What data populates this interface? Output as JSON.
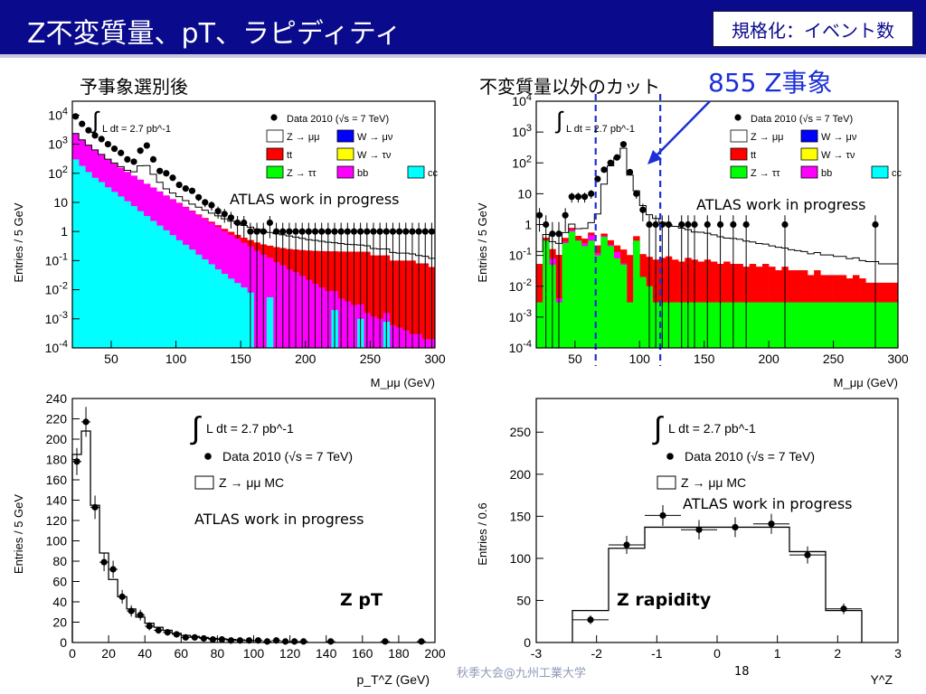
{
  "header": {
    "title": "Z不変質量、pT、ラピディティ",
    "badge": "規格化：イベント数"
  },
  "sections": {
    "left": "予事象選別後",
    "right": "不変質量以外のカット",
    "count": "855 Z事象"
  },
  "footer": {
    "conference": "秋季大会@九州工業大学",
    "page": "18"
  },
  "colors": {
    "title_bg": "#0a0a8c",
    "zmumu": "#ffffff",
    "wmunu": "#0000ff",
    "ttbar": "#ff0000",
    "wtaunu": "#ffff00",
    "ztautau": "#00ff00",
    "bb": "#ff00ff",
    "cc": "#00ffff",
    "annotation": "#1b2fd8"
  },
  "chart_data": [
    {
      "id": "mass-preselection",
      "type": "bar",
      "log_y": true,
      "x_unit_label": "M_μμ (GeV)",
      "ylabel": "Entries / 5 GeV",
      "xlim": [
        20,
        300
      ],
      "ylim": [
        0.0001,
        30000
      ],
      "x_ticks": [
        "50",
        "100",
        "150",
        "200",
        "250",
        "300"
      ],
      "y_ticks": [
        "10^-4",
        "10^-3",
        "10^-2",
        "10^-1",
        "1",
        "10",
        "10^2",
        "10^3",
        "10^4"
      ],
      "annotation": "ATLAS work in progress",
      "lumi": "L dt = 2.7 pb^-1",
      "legend": [
        "Data 2010 (√s = 7 TeV)",
        "Z → μμ",
        "W → μν",
        "tt",
        "W → τν",
        "Z → ττ",
        "bb",
        "cc"
      ],
      "x_bins_start": 20,
      "bin_width": 5,
      "series": [
        {
          "name": "cc",
          "values": [
            300,
            180,
            110,
            70,
            50,
            33,
            23,
            16,
            11,
            7.5,
            5,
            3.4,
            2.3,
            1.6,
            1.1,
            0.75,
            0.5,
            0.35,
            0.24,
            0.16,
            0.11,
            0.075,
            0.05,
            0.035,
            0.024,
            0.017,
            0.012,
            0.008,
            0,
            0,
            0.0055,
            0,
            0,
            0,
            0,
            0,
            0,
            0,
            0,
            0,
            0.002,
            0,
            0,
            0,
            0.001,
            0,
            0,
            0,
            0.0008,
            0,
            0,
            0,
            0,
            0,
            0,
            0
          ]
        },
        {
          "name": "bb",
          "values": [
            2000,
            1200,
            800,
            550,
            380,
            260,
            190,
            140,
            100,
            75,
            55,
            40,
            30,
            22,
            16,
            12,
            9,
            6.5,
            4.8,
            3.5,
            2.6,
            1.9,
            1.4,
            1.0,
            0.75,
            0.55,
            0.4,
            0.3,
            0.22,
            0.16,
            0.12,
            0.09,
            0.07,
            0.05,
            0.04,
            0.03,
            0.022,
            0.016,
            0.012,
            0.009,
            0.007,
            0.005,
            0.004,
            0.003,
            0.0022,
            0.0016,
            0.0012,
            0.001,
            0.0008,
            0.0006,
            0.0005,
            0.0004,
            0.0003,
            0.0003,
            0.0002,
            0.0002
          ]
        },
        {
          "name": "tt",
          "values": [
            0.2,
            0.2,
            0.2,
            0.2,
            0.2,
            0.2,
            0.2,
            0.2,
            0.2,
            0.2,
            0.2,
            0.2,
            0.2,
            0.2,
            0.2,
            0.2,
            0.2,
            0.2,
            0.2,
            0.2,
            0.2,
            0.2,
            0.2,
            0.2,
            0.2,
            0.2,
            0.2,
            0.2,
            0.2,
            0.2,
            0.2,
            0.2,
            0.2,
            0.2,
            0.2,
            0.2,
            0.2,
            0.2,
            0.2,
            0.2,
            0.2,
            0.2,
            0.2,
            0.2,
            0.2,
            0.2,
            0.15,
            0.15,
            0.15,
            0.1,
            0.1,
            0.1,
            0.1,
            0.08,
            0.08,
            0.06
          ]
        },
        {
          "name": "Z → μμ",
          "values": [
            30,
            25,
            20,
            18,
            15,
            14,
            13,
            13,
            15,
            30,
            120,
            140,
            60,
            25,
            12,
            8,
            6,
            4.5,
            3.5,
            3,
            2.5,
            2.1,
            1.8,
            1.5,
            1.3,
            1.1,
            1,
            0.9,
            0.8,
            0.7,
            0.6,
            0.55,
            0.5,
            0.45,
            0.4,
            0.35,
            0.3,
            0.28,
            0.25,
            0.22,
            0.2,
            0.18,
            0.16,
            0.15,
            0.14,
            0.12,
            0.11,
            0.1,
            0.1,
            0.09,
            0.08,
            0.08,
            0.07,
            0.07,
            0.06,
            0.06
          ]
        },
        {
          "name": "Data 2010 (√s = 7 TeV)",
          "values": [
            9000,
            5000,
            3000,
            2000,
            1500,
            1000,
            700,
            500,
            300,
            250,
            600,
            900,
            300,
            120,
            100,
            70,
            40,
            30,
            25,
            15,
            10,
            8,
            5,
            4,
            3,
            2,
            2,
            1,
            1,
            1,
            2,
            1,
            1,
            1,
            1,
            1,
            1,
            1,
            1,
            1,
            1,
            1,
            1,
            1,
            1,
            1,
            1,
            1,
            1,
            1,
            1,
            1,
            1,
            1,
            1,
            1
          ]
        }
      ]
    },
    {
      "id": "mass-after-cuts",
      "type": "bar",
      "log_y": true,
      "x_unit_label": "M_μμ (GeV)",
      "ylabel": "Entries / 5 GeV",
      "xlim": [
        20,
        300
      ],
      "ylim": [
        0.0001,
        10000
      ],
      "x_ticks": [
        "50",
        "100",
        "150",
        "200",
        "250",
        "300"
      ],
      "y_ticks": [
        "10^-4",
        "10^-3",
        "10^-2",
        "10^-1",
        "1",
        "10",
        "10^2",
        "10^3",
        "10^4"
      ],
      "annotation": "ATLAS work in progress",
      "lumi": "L dt = 2.7 pb^-1",
      "legend": [
        "Data 2010 (√s = 7 TeV)",
        "Z → μμ",
        "W → μν",
        "tt",
        "W → τν",
        "Z → ττ",
        "bb",
        "cc"
      ],
      "cut_lines": [
        66,
        116
      ],
      "x_bins_start": 20,
      "bin_width": 5,
      "series": [
        {
          "name": "Z → ττ",
          "values": [
            0.003,
            0.3,
            0.05,
            0.003,
            0.25,
            0.6,
            0.3,
            0.2,
            0.3,
            0.1,
            0.4,
            0.2,
            0.08,
            0.05,
            0.003,
            0.3,
            0.02,
            0.01,
            0.003,
            0.003,
            0.003,
            0.003,
            0.003,
            0.003,
            0.003,
            0.003,
            0.003,
            0.003,
            0.003,
            0.003,
            0.003,
            0.003,
            0.003,
            0.003,
            0.003,
            0.003,
            0.003,
            0.003,
            0.003,
            0.003,
            0.003,
            0.003,
            0.003,
            0.003,
            0.003,
            0.003,
            0.003,
            0.003,
            0.003,
            0.003,
            0.003,
            0.003,
            0.003,
            0.003,
            0.003,
            0.003
          ]
        },
        {
          "name": "bb",
          "values": [
            0,
            0.005,
            0.03,
            0.001,
            0.03,
            0.08,
            0.01,
            0.05,
            0.15,
            0.02,
            0.03,
            0.02,
            0.05,
            0.005,
            0,
            0,
            0,
            0,
            0,
            0,
            0,
            0,
            0,
            0,
            0,
            0,
            0,
            0,
            0,
            0,
            0,
            0,
            0,
            0,
            0,
            0,
            0,
            0,
            0,
            0,
            0,
            0,
            0,
            0,
            0,
            0,
            0,
            0,
            0,
            0,
            0,
            0,
            0,
            0,
            0,
            0
          ]
        },
        {
          "name": "tt",
          "values": [
            0.05,
            0.07,
            0.08,
            0.1,
            0.09,
            0.1,
            0.12,
            0.1,
            0.1,
            0.09,
            0.08,
            0.09,
            0.08,
            0.1,
            0.1,
            0.12,
            0.09,
            0.08,
            0.07,
            0.08,
            0.09,
            0.07,
            0.06,
            0.08,
            0.07,
            0.06,
            0.07,
            0.06,
            0.05,
            0.06,
            0.05,
            0.05,
            0.04,
            0.05,
            0.04,
            0.05,
            0.04,
            0.03,
            0.04,
            0.03,
            0.03,
            0.03,
            0.02,
            0.03,
            0.02,
            0.02,
            0.02,
            0.02,
            0.015,
            0.02,
            0.015,
            0.01,
            0.01,
            0.01,
            0.01,
            0.01
          ]
        },
        {
          "name": "Z → μμ",
          "values": [
            0.08,
            0.1,
            0.12,
            0.14,
            0.18,
            0.25,
            0.3,
            0.4,
            0.6,
            2,
            20,
            80,
            150,
            300,
            40,
            12,
            4,
            2,
            1.5,
            1.1,
            0.9,
            0.8,
            0.7,
            0.6,
            0.5,
            0.5,
            0.45,
            0.4,
            0.35,
            0.3,
            0.3,
            0.28,
            0.25,
            0.22,
            0.2,
            0.18,
            0.16,
            0.15,
            0.13,
            0.12,
            0.11,
            0.1,
            0.09,
            0.09,
            0.08,
            0.08,
            0.07,
            0.07,
            0.06,
            0.06,
            0.05,
            0.05,
            0.05,
            0.04,
            0.04,
            0.04
          ]
        },
        {
          "name": "Data 2010 (√s = 7 TeV)",
          "values": [
            2,
            1,
            0.5,
            0.5,
            2,
            8,
            8,
            8,
            10,
            30,
            60,
            100,
            150,
            400,
            50,
            10,
            3,
            1,
            1,
            1,
            1,
            0,
            1,
            1,
            1,
            0,
            1,
            0,
            1,
            0,
            1,
            0,
            1,
            0,
            0,
            0,
            0,
            0,
            1,
            0,
            0,
            0,
            0,
            0,
            0,
            0,
            0,
            0,
            0,
            0,
            0,
            0,
            1,
            0,
            0,
            0
          ]
        }
      ]
    },
    {
      "id": "z-pt",
      "type": "scatter",
      "xlabel": "p_T^Z (GeV)",
      "ylabel": "Entries / 5 GeV",
      "xlim": [
        0,
        200
      ],
      "ylim": [
        0,
        240
      ],
      "x_ticks": [
        "0",
        "20",
        "40",
        "60",
        "80",
        "100",
        "120",
        "140",
        "160",
        "180",
        "200"
      ],
      "y_ticks": [
        "0",
        "20",
        "40",
        "60",
        "80",
        "100",
        "120",
        "140",
        "160",
        "180",
        "200",
        "220",
        "240"
      ],
      "annotation": "ATLAS work in progress",
      "panel_label": "Z pT",
      "lumi": "L dt = 2.7 pb^-1",
      "legend": [
        "Data 2010 (√s = 7 TeV)",
        "Z → μμ MC"
      ],
      "series": [
        {
          "name": "Data 2010 (√s = 7 TeV)",
          "x": [
            2.5,
            7.5,
            12.5,
            17.5,
            22.5,
            27.5,
            32.5,
            37.5,
            42.5,
            47.5,
            52.5,
            57.5,
            62.5,
            67.5,
            72.5,
            77.5,
            82.5,
            87.5,
            92.5,
            97.5,
            102.5,
            107.5,
            112.5,
            117.5,
            122.5,
            127.5,
            142.5,
            172.5,
            192.5
          ],
          "y": [
            178,
            217,
            133,
            79,
            72,
            45,
            31,
            27,
            16,
            12,
            10,
            8,
            5,
            5,
            4,
            3,
            3,
            2,
            2,
            2,
            2,
            1,
            2,
            1,
            1,
            1,
            1,
            1,
            1
          ]
        },
        {
          "name": "Z → μμ MC",
          "x": [
            2.5,
            7.5,
            12.5,
            17.5,
            22.5,
            27.5,
            32.5,
            37.5,
            42.5,
            47.5,
            52.5,
            57.5,
            62.5,
            67.5,
            72.5,
            77.5,
            82.5,
            87.5,
            92.5,
            97.5
          ],
          "y": [
            185,
            208,
            135,
            88,
            62,
            45,
            33,
            25,
            19,
            15,
            12,
            9,
            7,
            6,
            5,
            4,
            3.5,
            3,
            2.5,
            2
          ]
        }
      ]
    },
    {
      "id": "z-rapidity",
      "type": "scatter",
      "xlabel": "Y^Z",
      "ylabel": "Entries / 0.6",
      "xlim": [
        -3,
        3
      ],
      "ylim": [
        0,
        290
      ],
      "x_ticks": [
        "-3",
        "-2",
        "-1",
        "0",
        "1",
        "2",
        "3"
      ],
      "y_ticks": [
        "0",
        "50",
        "100",
        "150",
        "200",
        "250"
      ],
      "annotation": "ATLAS work in progress",
      "panel_label": "Z rapidity",
      "lumi": "L dt = 2.7 pb^-1",
      "legend": [
        "Data 2010 (√s = 7 TeV)",
        "Z → μμ MC"
      ],
      "series": [
        {
          "name": "Data 2010 (√s = 7 TeV)",
          "x": [
            -2.1,
            -1.5,
            -0.9,
            -0.3,
            0.3,
            0.9,
            1.5,
            2.1
          ],
          "y": [
            27,
            116,
            151,
            134,
            137,
            141,
            104,
            40
          ]
        },
        {
          "name": "Z → μμ MC",
          "x": [
            -2.1,
            -1.5,
            -0.9,
            -0.3,
            0.3,
            0.9,
            1.5,
            2.1
          ],
          "y": [
            38,
            112,
            137,
            137,
            137,
            137,
            108,
            38
          ]
        }
      ]
    }
  ]
}
